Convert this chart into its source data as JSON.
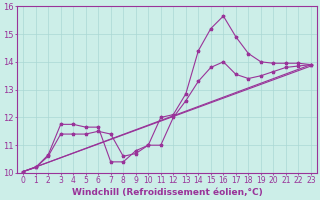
{
  "background_color": "#cceee8",
  "grid_color": "#aad8d4",
  "line_color": "#993399",
  "marker": "*",
  "xlim": [
    -0.5,
    23.5
  ],
  "ylim": [
    10,
    16
  ],
  "xlabel": "Windchill (Refroidissement éolien,°C)",
  "xlabel_fontsize": 6.5,
  "tick_fontsize": 5.5,
  "line1_x": [
    0,
    1,
    2,
    3,
    4,
    5,
    6,
    7,
    8,
    9,
    10,
    11,
    12,
    13,
    14,
    15,
    16,
    17,
    18,
    19,
    20,
    21,
    22,
    23
  ],
  "line1_y": [
    10.05,
    10.2,
    10.65,
    11.75,
    11.75,
    11.65,
    11.65,
    10.4,
    10.4,
    10.8,
    11.0,
    12.0,
    12.1,
    12.85,
    14.4,
    15.2,
    15.65,
    14.9,
    14.3,
    14.0,
    13.95,
    13.95,
    13.95,
    13.9
  ],
  "line2_x": [
    0,
    1,
    2,
    3,
    4,
    5,
    6,
    7,
    8,
    9,
    10,
    11,
    12,
    13,
    14,
    15,
    16,
    17,
    18,
    19,
    20,
    21,
    22,
    23
  ],
  "line2_y": [
    10.05,
    10.2,
    10.6,
    11.4,
    11.4,
    11.4,
    11.5,
    11.4,
    10.6,
    10.7,
    11.0,
    11.0,
    12.0,
    12.6,
    13.3,
    13.8,
    14.0,
    13.55,
    13.4,
    13.5,
    13.65,
    13.8,
    13.85,
    13.9
  ],
  "line3_x": [
    0,
    23
  ],
  "line3_y": [
    10.05,
    13.9
  ],
  "line4_x": [
    0,
    23
  ],
  "line4_y": [
    10.05,
    13.85
  ]
}
